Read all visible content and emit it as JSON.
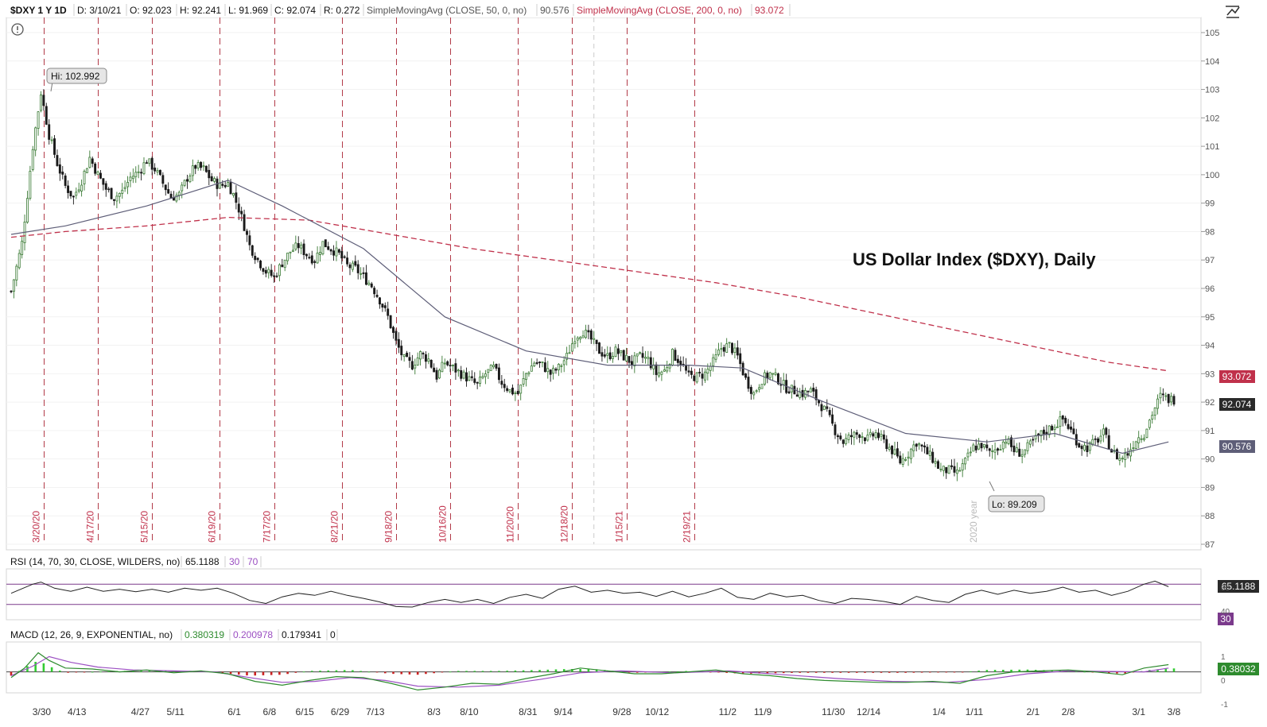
{
  "header": {
    "symbol": "$DXY 1 Y 1D",
    "date": "D: 3/10/21",
    "open": "O: 92.023",
    "high": "H: 92.241",
    "low": "L: 91.969",
    "close": "C: 92.074",
    "range": "R: 0.272",
    "sma50_label": "SimpleMovingAvg (CLOSE, 50, 0, no)",
    "sma50_value": "90.576",
    "sma200_label": "SimpleMovingAvg (CLOSE, 200, 0, no)",
    "sma200_value": "93.072"
  },
  "annotation": "US Dollar Index ($DXY), Daily",
  "hi_label": "Hi: 102.992",
  "lo_label": "Lo: 89.209",
  "year_marker": "2020 year",
  "rsi_header": {
    "label": "RSI (14, 70, 30, CLOSE, WILDERS, no)",
    "value": "65.1188",
    "low": "30",
    "high": "70"
  },
  "macd_header": {
    "label": "MACD (12, 26, 9, EXPONENTIAL, no)",
    "value": "0.380319",
    "avg": "0.200978",
    "diff": "0.179341",
    "zero": "0"
  },
  "price_badges": {
    "sma200": "93.072",
    "close": "92.074",
    "sma50": "90.576"
  },
  "rsi_badges": {
    "value": "65.1188",
    "level": "30"
  },
  "macd_badge": "0.38032",
  "colors": {
    "up": "#3a7a34",
    "down": "#1a1a1a",
    "sma50": "#5e5e78",
    "sma200": "#c0314b",
    "event_line": "#b23a48",
    "rsi_line": "#222222",
    "rsi_level": "#7b3a8c",
    "macd_line": "#2e8b2e",
    "macd_signal": "#9b4fc2",
    "hist_up": "#33cc33",
    "hist_down": "#cc2222"
  },
  "chart_data": {
    "type": "candlestick",
    "title": "US Dollar Index ($DXY), Daily",
    "price_axis": [
      "105",
      "104",
      "103",
      "102",
      "101",
      "100",
      "99",
      "98",
      "97",
      "96",
      "95",
      "94",
      "93",
      "92",
      "91",
      "90",
      "89",
      "88",
      "87"
    ],
    "ylim": [
      87,
      105
    ],
    "time_axis": [
      "3/30",
      "4/13",
      "4/27",
      "5/11",
      "6/1",
      "6/8",
      "6/15",
      "6/29",
      "7/13",
      "8/3",
      "8/10",
      "8/31",
      "9/14",
      "9/28",
      "10/12",
      "11/2",
      "11/9",
      "11/30",
      "12/14",
      "1/4",
      "1/11",
      "2/1",
      "2/8",
      "3/1",
      "3/8"
    ],
    "event_lines": [
      "3/20/20",
      "4/17/20",
      "5/15/20",
      "6/19/20",
      "7/17/20",
      "8/21/20",
      "9/18/20",
      "10/16/20",
      "11/20/20",
      "12/18/20",
      "1/15/21",
      "2/19/21"
    ],
    "close_path": [
      [
        0,
        95.9
      ],
      [
        4,
        97.6
      ],
      [
        8,
        101.0
      ],
      [
        11,
        102.9
      ],
      [
        14,
        101.4
      ],
      [
        17,
        100.4
      ],
      [
        20,
        99.6
      ],
      [
        23,
        99.2
      ],
      [
        26,
        99.8
      ],
      [
        29,
        100.6
      ],
      [
        32,
        100.0
      ],
      [
        35,
        99.5
      ],
      [
        38,
        99.2
      ],
      [
        41,
        99.4
      ],
      [
        44,
        99.9
      ],
      [
        47,
        100.1
      ],
      [
        50,
        100.5
      ],
      [
        53,
        100.2
      ],
      [
        56,
        99.7
      ],
      [
        59,
        99.2
      ],
      [
        62,
        99.3
      ],
      [
        65,
        99.9
      ],
      [
        68,
        100.3
      ],
      [
        71,
        100.2
      ],
      [
        74,
        99.8
      ],
      [
        77,
        99.6
      ],
      [
        80,
        99.7
      ],
      [
        82,
        99.3
      ],
      [
        84,
        98.8
      ],
      [
        86,
        98.2
      ],
      [
        88,
        97.5
      ],
      [
        91,
        97.0
      ],
      [
        94,
        96.6
      ],
      [
        97,
        96.4
      ],
      [
        100,
        96.9
      ],
      [
        103,
        97.3
      ],
      [
        106,
        97.5
      ],
      [
        109,
        97.2
      ],
      [
        112,
        97.0
      ],
      [
        115,
        97.6
      ],
      [
        118,
        97.4
      ],
      [
        121,
        97.2
      ],
      [
        124,
        96.8
      ],
      [
        127,
        96.7
      ],
      [
        130,
        96.4
      ],
      [
        133,
        96.1
      ],
      [
        136,
        95.6
      ],
      [
        139,
        95.0
      ],
      [
        142,
        94.1
      ],
      [
        145,
        93.5
      ],
      [
        148,
        93.3
      ],
      [
        151,
        93.7
      ],
      [
        154,
        93.5
      ],
      [
        157,
        92.9
      ],
      [
        160,
        93.4
      ],
      [
        163,
        93.2
      ],
      [
        166,
        93.0
      ],
      [
        169,
        92.8
      ],
      [
        172,
        92.6
      ],
      [
        175,
        93.0
      ],
      [
        178,
        93.2
      ],
      [
        181,
        92.7
      ],
      [
        184,
        92.4
      ],
      [
        187,
        92.3
      ],
      [
        190,
        93.0
      ],
      [
        193,
        93.4
      ],
      [
        196,
        93.3
      ],
      [
        199,
        93.0
      ],
      [
        202,
        93.2
      ],
      [
        205,
        93.6
      ],
      [
        208,
        94.3
      ],
      [
        211,
        94.5
      ],
      [
        214,
        94.2
      ],
      [
        217,
        93.8
      ],
      [
        220,
        93.6
      ],
      [
        223,
        93.8
      ],
      [
        226,
        93.6
      ],
      [
        229,
        93.4
      ],
      [
        232,
        93.6
      ],
      [
        235,
        93.5
      ],
      [
        238,
        93.0
      ],
      [
        241,
        93.1
      ],
      [
        244,
        93.7
      ],
      [
        247,
        93.4
      ],
      [
        250,
        92.9
      ],
      [
        253,
        92.9
      ],
      [
        256,
        93.0
      ],
      [
        259,
        93.4
      ],
      [
        262,
        93.9
      ],
      [
        265,
        94.0
      ],
      [
        268,
        93.6
      ],
      [
        271,
        92.8
      ],
      [
        274,
        92.3
      ],
      [
        277,
        92.8
      ],
      [
        280,
        93.0
      ],
      [
        283,
        92.8
      ],
      [
        286,
        92.5
      ],
      [
        289,
        92.4
      ],
      [
        292,
        92.3
      ],
      [
        295,
        92.4
      ],
      [
        298,
        92.0
      ],
      [
        301,
        91.6
      ],
      [
        304,
        91.0
      ],
      [
        307,
        90.6
      ],
      [
        310,
        90.8
      ],
      [
        313,
        90.9
      ],
      [
        316,
        90.7
      ],
      [
        319,
        90.9
      ],
      [
        322,
        90.6
      ],
      [
        325,
        90.3
      ],
      [
        328,
        89.9
      ],
      [
        331,
        90.2
      ],
      [
        334,
        90.6
      ],
      [
        337,
        90.3
      ],
      [
        340,
        90.0
      ],
      [
        343,
        89.6
      ],
      [
        346,
        89.6
      ],
      [
        349,
        89.5
      ],
      [
        352,
        89.9
      ],
      [
        355,
        90.4
      ],
      [
        358,
        90.5
      ],
      [
        361,
        90.2
      ],
      [
        364,
        90.4
      ],
      [
        367,
        90.7
      ],
      [
        370,
        90.3
      ],
      [
        373,
        90.2
      ],
      [
        376,
        90.5
      ],
      [
        379,
        90.8
      ],
      [
        382,
        91.0
      ],
      [
        385,
        91.2
      ],
      [
        388,
        91.4
      ],
      [
        391,
        91.0
      ],
      [
        394,
        90.5
      ],
      [
        397,
        90.4
      ],
      [
        400,
        90.6
      ],
      [
        403,
        90.9
      ],
      [
        406,
        90.3
      ],
      [
        409,
        90.0
      ],
      [
        412,
        90.2
      ],
      [
        415,
        90.7
      ],
      [
        418,
        90.9
      ],
      [
        421,
        91.6
      ],
      [
        424,
        92.2
      ],
      [
        427,
        92.1
      ]
    ],
    "n_bars": 430,
    "sma50_path": [
      [
        0,
        97.9
      ],
      [
        20,
        98.2
      ],
      [
        50,
        98.9
      ],
      [
        80,
        99.8
      ],
      [
        100,
        98.9
      ],
      [
        130,
        97.4
      ],
      [
        160,
        95.0
      ],
      [
        190,
        93.8
      ],
      [
        220,
        93.3
      ],
      [
        250,
        93.3
      ],
      [
        270,
        93.2
      ],
      [
        300,
        92.0
      ],
      [
        330,
        90.9
      ],
      [
        360,
        90.6
      ],
      [
        385,
        90.9
      ],
      [
        410,
        90.2
      ],
      [
        427,
        90.6
      ]
    ],
    "sma200_path": [
      [
        0,
        97.8
      ],
      [
        20,
        98.0
      ],
      [
        50,
        98.2
      ],
      [
        80,
        98.5
      ],
      [
        110,
        98.4
      ],
      [
        140,
        97.9
      ],
      [
        170,
        97.4
      ],
      [
        200,
        97.0
      ],
      [
        230,
        96.6
      ],
      [
        260,
        96.2
      ],
      [
        290,
        95.7
      ],
      [
        320,
        95.1
      ],
      [
        350,
        94.5
      ],
      [
        380,
        93.9
      ],
      [
        405,
        93.4
      ],
      [
        427,
        93.1
      ]
    ],
    "rsi": {
      "ylim": [
        0,
        100
      ],
      "levels": [
        30,
        70
      ],
      "path": [
        [
          0,
          52
        ],
        [
          8,
          70
        ],
        [
          11,
          74
        ],
        [
          16,
          62
        ],
        [
          22,
          56
        ],
        [
          28,
          64
        ],
        [
          34,
          56
        ],
        [
          40,
          60
        ],
        [
          46,
          55
        ],
        [
          52,
          60
        ],
        [
          58,
          54
        ],
        [
          64,
          62
        ],
        [
          70,
          58
        ],
        [
          76,
          62
        ],
        [
          82,
          52
        ],
        [
          88,
          38
        ],
        [
          94,
          32
        ],
        [
          100,
          45
        ],
        [
          106,
          52
        ],
        [
          112,
          48
        ],
        [
          118,
          56
        ],
        [
          124,
          48
        ],
        [
          130,
          42
        ],
        [
          136,
          35
        ],
        [
          142,
          26
        ],
        [
          148,
          25
        ],
        [
          154,
          34
        ],
        [
          160,
          40
        ],
        [
          166,
          34
        ],
        [
          172,
          40
        ],
        [
          178,
          32
        ],
        [
          184,
          44
        ],
        [
          190,
          50
        ],
        [
          196,
          42
        ],
        [
          202,
          60
        ],
        [
          208,
          66
        ],
        [
          214,
          54
        ],
        [
          220,
          58
        ],
        [
          226,
          52
        ],
        [
          232,
          54
        ],
        [
          238,
          46
        ],
        [
          244,
          56
        ],
        [
          250,
          45
        ],
        [
          256,
          52
        ],
        [
          262,
          62
        ],
        [
          268,
          44
        ],
        [
          274,
          40
        ],
        [
          280,
          52
        ],
        [
          286,
          45
        ],
        [
          292,
          48
        ],
        [
          298,
          38
        ],
        [
          304,
          32
        ],
        [
          310,
          42
        ],
        [
          316,
          40
        ],
        [
          322,
          36
        ],
        [
          328,
          30
        ],
        [
          334,
          46
        ],
        [
          340,
          38
        ],
        [
          346,
          34
        ],
        [
          352,
          50
        ],
        [
          358,
          58
        ],
        [
          364,
          50
        ],
        [
          370,
          58
        ],
        [
          376,
          52
        ],
        [
          382,
          56
        ],
        [
          388,
          64
        ],
        [
          394,
          54
        ],
        [
          400,
          58
        ],
        [
          406,
          48
        ],
        [
          412,
          56
        ],
        [
          418,
          70
        ],
        [
          422,
          76
        ],
        [
          427,
          65
        ]
      ]
    },
    "macd": {
      "ylim": [
        -1.1,
        1.4
      ],
      "macd_path": [
        [
          0,
          -0.3
        ],
        [
          5,
          0.2
        ],
        [
          10,
          1.0
        ],
        [
          14,
          0.6
        ],
        [
          20,
          0.2
        ],
        [
          30,
          0.15
        ],
        [
          40,
          0.0
        ],
        [
          50,
          0.1
        ],
        [
          60,
          -0.05
        ],
        [
          70,
          0.05
        ],
        [
          80,
          -0.1
        ],
        [
          90,
          -0.5
        ],
        [
          100,
          -0.7
        ],
        [
          110,
          -0.45
        ],
        [
          120,
          -0.25
        ],
        [
          130,
          -0.3
        ],
        [
          140,
          -0.6
        ],
        [
          150,
          -0.95
        ],
        [
          160,
          -0.8
        ],
        [
          170,
          -0.6
        ],
        [
          180,
          -0.65
        ],
        [
          190,
          -0.35
        ],
        [
          200,
          -0.1
        ],
        [
          210,
          0.2
        ],
        [
          220,
          0.05
        ],
        [
          230,
          -0.1
        ],
        [
          240,
          -0.1
        ],
        [
          250,
          0.0
        ],
        [
          260,
          0.1
        ],
        [
          270,
          -0.1
        ],
        [
          280,
          -0.2
        ],
        [
          290,
          -0.35
        ],
        [
          300,
          -0.45
        ],
        [
          310,
          -0.5
        ],
        [
          320,
          -0.55
        ],
        [
          330,
          -0.55
        ],
        [
          340,
          -0.5
        ],
        [
          350,
          -0.6
        ],
        [
          360,
          -0.2
        ],
        [
          370,
          0.0
        ],
        [
          380,
          0.05
        ],
        [
          390,
          0.1
        ],
        [
          400,
          0.0
        ],
        [
          410,
          -0.15
        ],
        [
          418,
          0.2
        ],
        [
          427,
          0.38
        ]
      ],
      "signal_path": [
        [
          0,
          -0.2
        ],
        [
          8,
          0.3
        ],
        [
          14,
          0.8
        ],
        [
          22,
          0.5
        ],
        [
          32,
          0.25
        ],
        [
          45,
          0.1
        ],
        [
          60,
          0.05
        ],
        [
          75,
          0.0
        ],
        [
          88,
          -0.3
        ],
        [
          100,
          -0.55
        ],
        [
          112,
          -0.5
        ],
        [
          125,
          -0.3
        ],
        [
          138,
          -0.45
        ],
        [
          150,
          -0.75
        ],
        [
          165,
          -0.8
        ],
        [
          180,
          -0.7
        ],
        [
          195,
          -0.4
        ],
        [
          210,
          -0.05
        ],
        [
          225,
          0.05
        ],
        [
          245,
          -0.05
        ],
        [
          265,
          0.05
        ],
        [
          285,
          -0.15
        ],
        [
          305,
          -0.35
        ],
        [
          325,
          -0.5
        ],
        [
          345,
          -0.55
        ],
        [
          360,
          -0.4
        ],
        [
          375,
          -0.1
        ],
        [
          390,
          0.05
        ],
        [
          405,
          0.02
        ],
        [
          418,
          0.0
        ],
        [
          427,
          0.2
        ]
      ],
      "hist": [
        [
          0,
          -0.2
        ],
        [
          6,
          0.3
        ],
        [
          10,
          0.6
        ],
        [
          14,
          0.3
        ],
        [
          20,
          -0.05
        ],
        [
          40,
          0.05
        ],
        [
          70,
          0.05
        ],
        [
          88,
          -0.2
        ],
        [
          100,
          -0.15
        ],
        [
          110,
          0.05
        ],
        [
          125,
          0.1
        ],
        [
          140,
          -0.1
        ],
        [
          150,
          -0.15
        ],
        [
          165,
          0.05
        ],
        [
          180,
          0.05
        ],
        [
          195,
          0.1
        ],
        [
          205,
          0.15
        ],
        [
          215,
          0.15
        ],
        [
          230,
          -0.05
        ],
        [
          250,
          0.05
        ],
        [
          270,
          -0.1
        ],
        [
          290,
          -0.05
        ],
        [
          310,
          -0.05
        ],
        [
          330,
          -0.05
        ],
        [
          350,
          -0.02
        ],
        [
          360,
          0.1
        ],
        [
          375,
          0.12
        ],
        [
          390,
          0.05
        ],
        [
          410,
          -0.1
        ],
        [
          420,
          0.1
        ],
        [
          427,
          0.18
        ]
      ]
    }
  }
}
